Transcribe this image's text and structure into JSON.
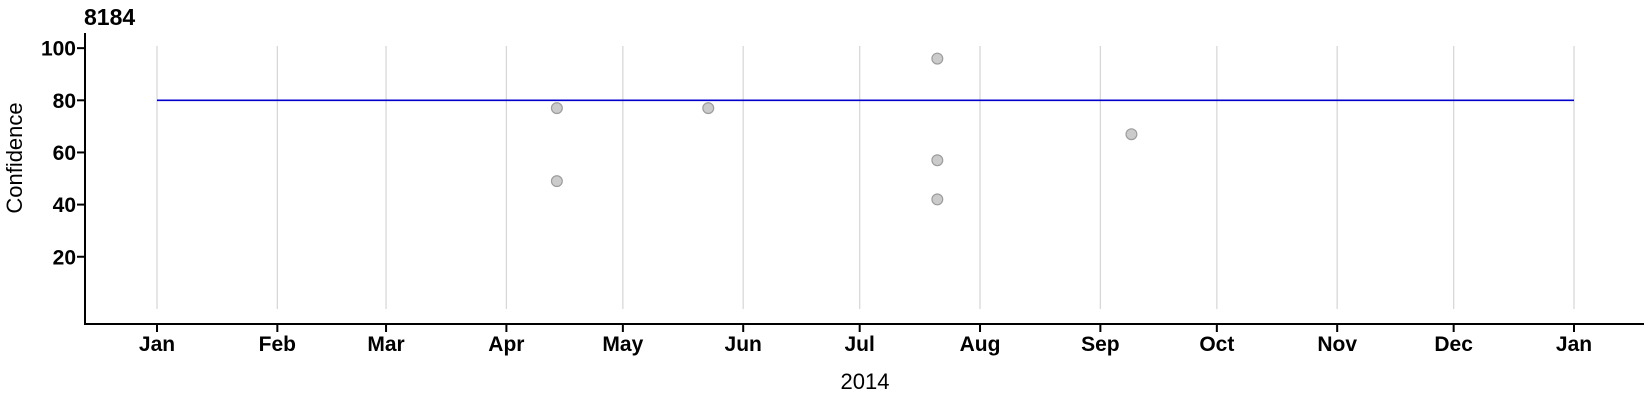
{
  "chart_data": {
    "type": "scatter",
    "title": "8184",
    "xlabel": "2014",
    "ylabel": "Confidence",
    "x_axis": {
      "kind": "date",
      "unit": "day_of_year_2014",
      "grid": true,
      "ticks": [
        {
          "label": "Jan",
          "day": 0
        },
        {
          "label": "Feb",
          "day": 31
        },
        {
          "label": "Mar",
          "day": 59
        },
        {
          "label": "Apr",
          "day": 90
        },
        {
          "label": "May",
          "day": 120
        },
        {
          "label": "Jun",
          "day": 151
        },
        {
          "label": "Jul",
          "day": 181
        },
        {
          "label": "Aug",
          "day": 212
        },
        {
          "label": "Sep",
          "day": 243
        },
        {
          "label": "Oct",
          "day": 273
        },
        {
          "label": "Nov",
          "day": 304
        },
        {
          "label": "Dec",
          "day": 334
        },
        {
          "label": "Jan",
          "day": 365
        }
      ],
      "xlim_days": [
        -18,
        383
      ]
    },
    "y_axis": {
      "ticks": [
        20,
        40,
        60,
        80,
        100
      ],
      "ylim": [
        -6,
        106
      ]
    },
    "reference_line": {
      "y": 80,
      "from_day": 0,
      "to_day": 365
    },
    "points": [
      {
        "day": 103,
        "approx_date": "Apr 14",
        "value": 77
      },
      {
        "day": 103,
        "approx_date": "Apr 14",
        "value": 49
      },
      {
        "day": 142,
        "approx_date": "May 23",
        "value": 77
      },
      {
        "day": 201,
        "approx_date": "Jul 21",
        "value": 96
      },
      {
        "day": 201,
        "approx_date": "Jul 21",
        "value": 57
      },
      {
        "day": 201,
        "approx_date": "Jul 21",
        "value": 42
      },
      {
        "day": 251,
        "approx_date": "Sep 9",
        "value": 67
      }
    ],
    "colors": {
      "reference_line": "#0000cd",
      "point_fill": "#cbcbcb",
      "point_stroke": "#9d9d9d",
      "grid": "#d8d8d8",
      "axis": "#000000",
      "text": "#000000"
    }
  }
}
